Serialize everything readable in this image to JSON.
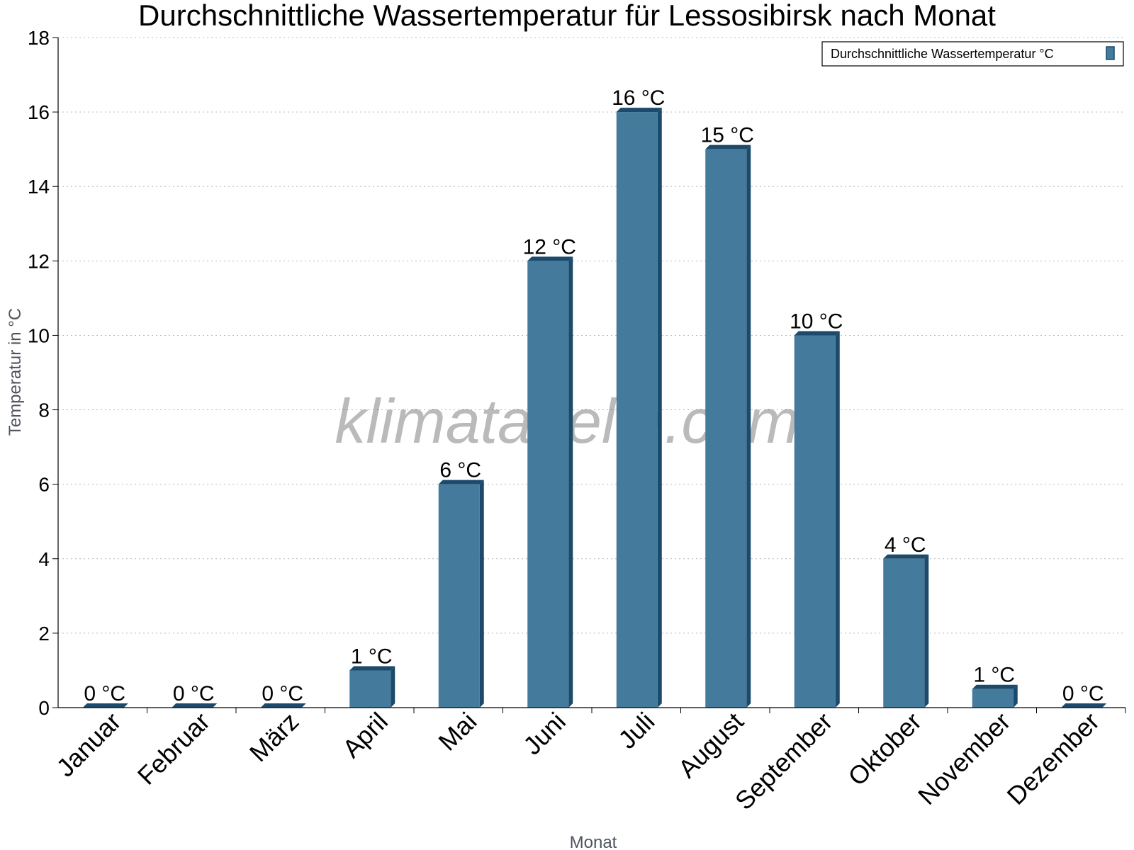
{
  "chart_data": {
    "type": "bar",
    "title": "Durchschnittliche Wassertemperatur für Lessosibirsk nach Monat",
    "xlabel": "Monat",
    "ylabel": "Temperatur in °C",
    "categories": [
      "Januar",
      "Februar",
      "März",
      "April",
      "Mai",
      "Juni",
      "Juli",
      "August",
      "September",
      "Oktober",
      "November",
      "Dezember"
    ],
    "series": [
      {
        "name": "Durchschnittliche Wassertemperatur °C",
        "values": [
          0,
          0,
          0,
          1,
          6,
          12,
          16,
          15,
          10,
          4,
          0.5,
          0
        ],
        "labels": [
          "0 °C",
          "0 °C",
          "0 °C",
          "1 °C",
          "6 °C",
          "12 °C",
          "16 °C",
          "15 °C",
          "10 °C",
          "4 °C",
          "1 °C",
          "0 °C"
        ]
      }
    ],
    "ylim": [
      0,
      18
    ],
    "yticks": [
      "0",
      "2",
      "4",
      "6",
      "8",
      "10",
      "12",
      "14",
      "16",
      "18"
    ],
    "grid": true,
    "legend_position": "top-right",
    "bar_color": "#447a9c",
    "bar_edge_color": "#1b4a6a"
  },
  "watermark": "klimatabelle.com"
}
